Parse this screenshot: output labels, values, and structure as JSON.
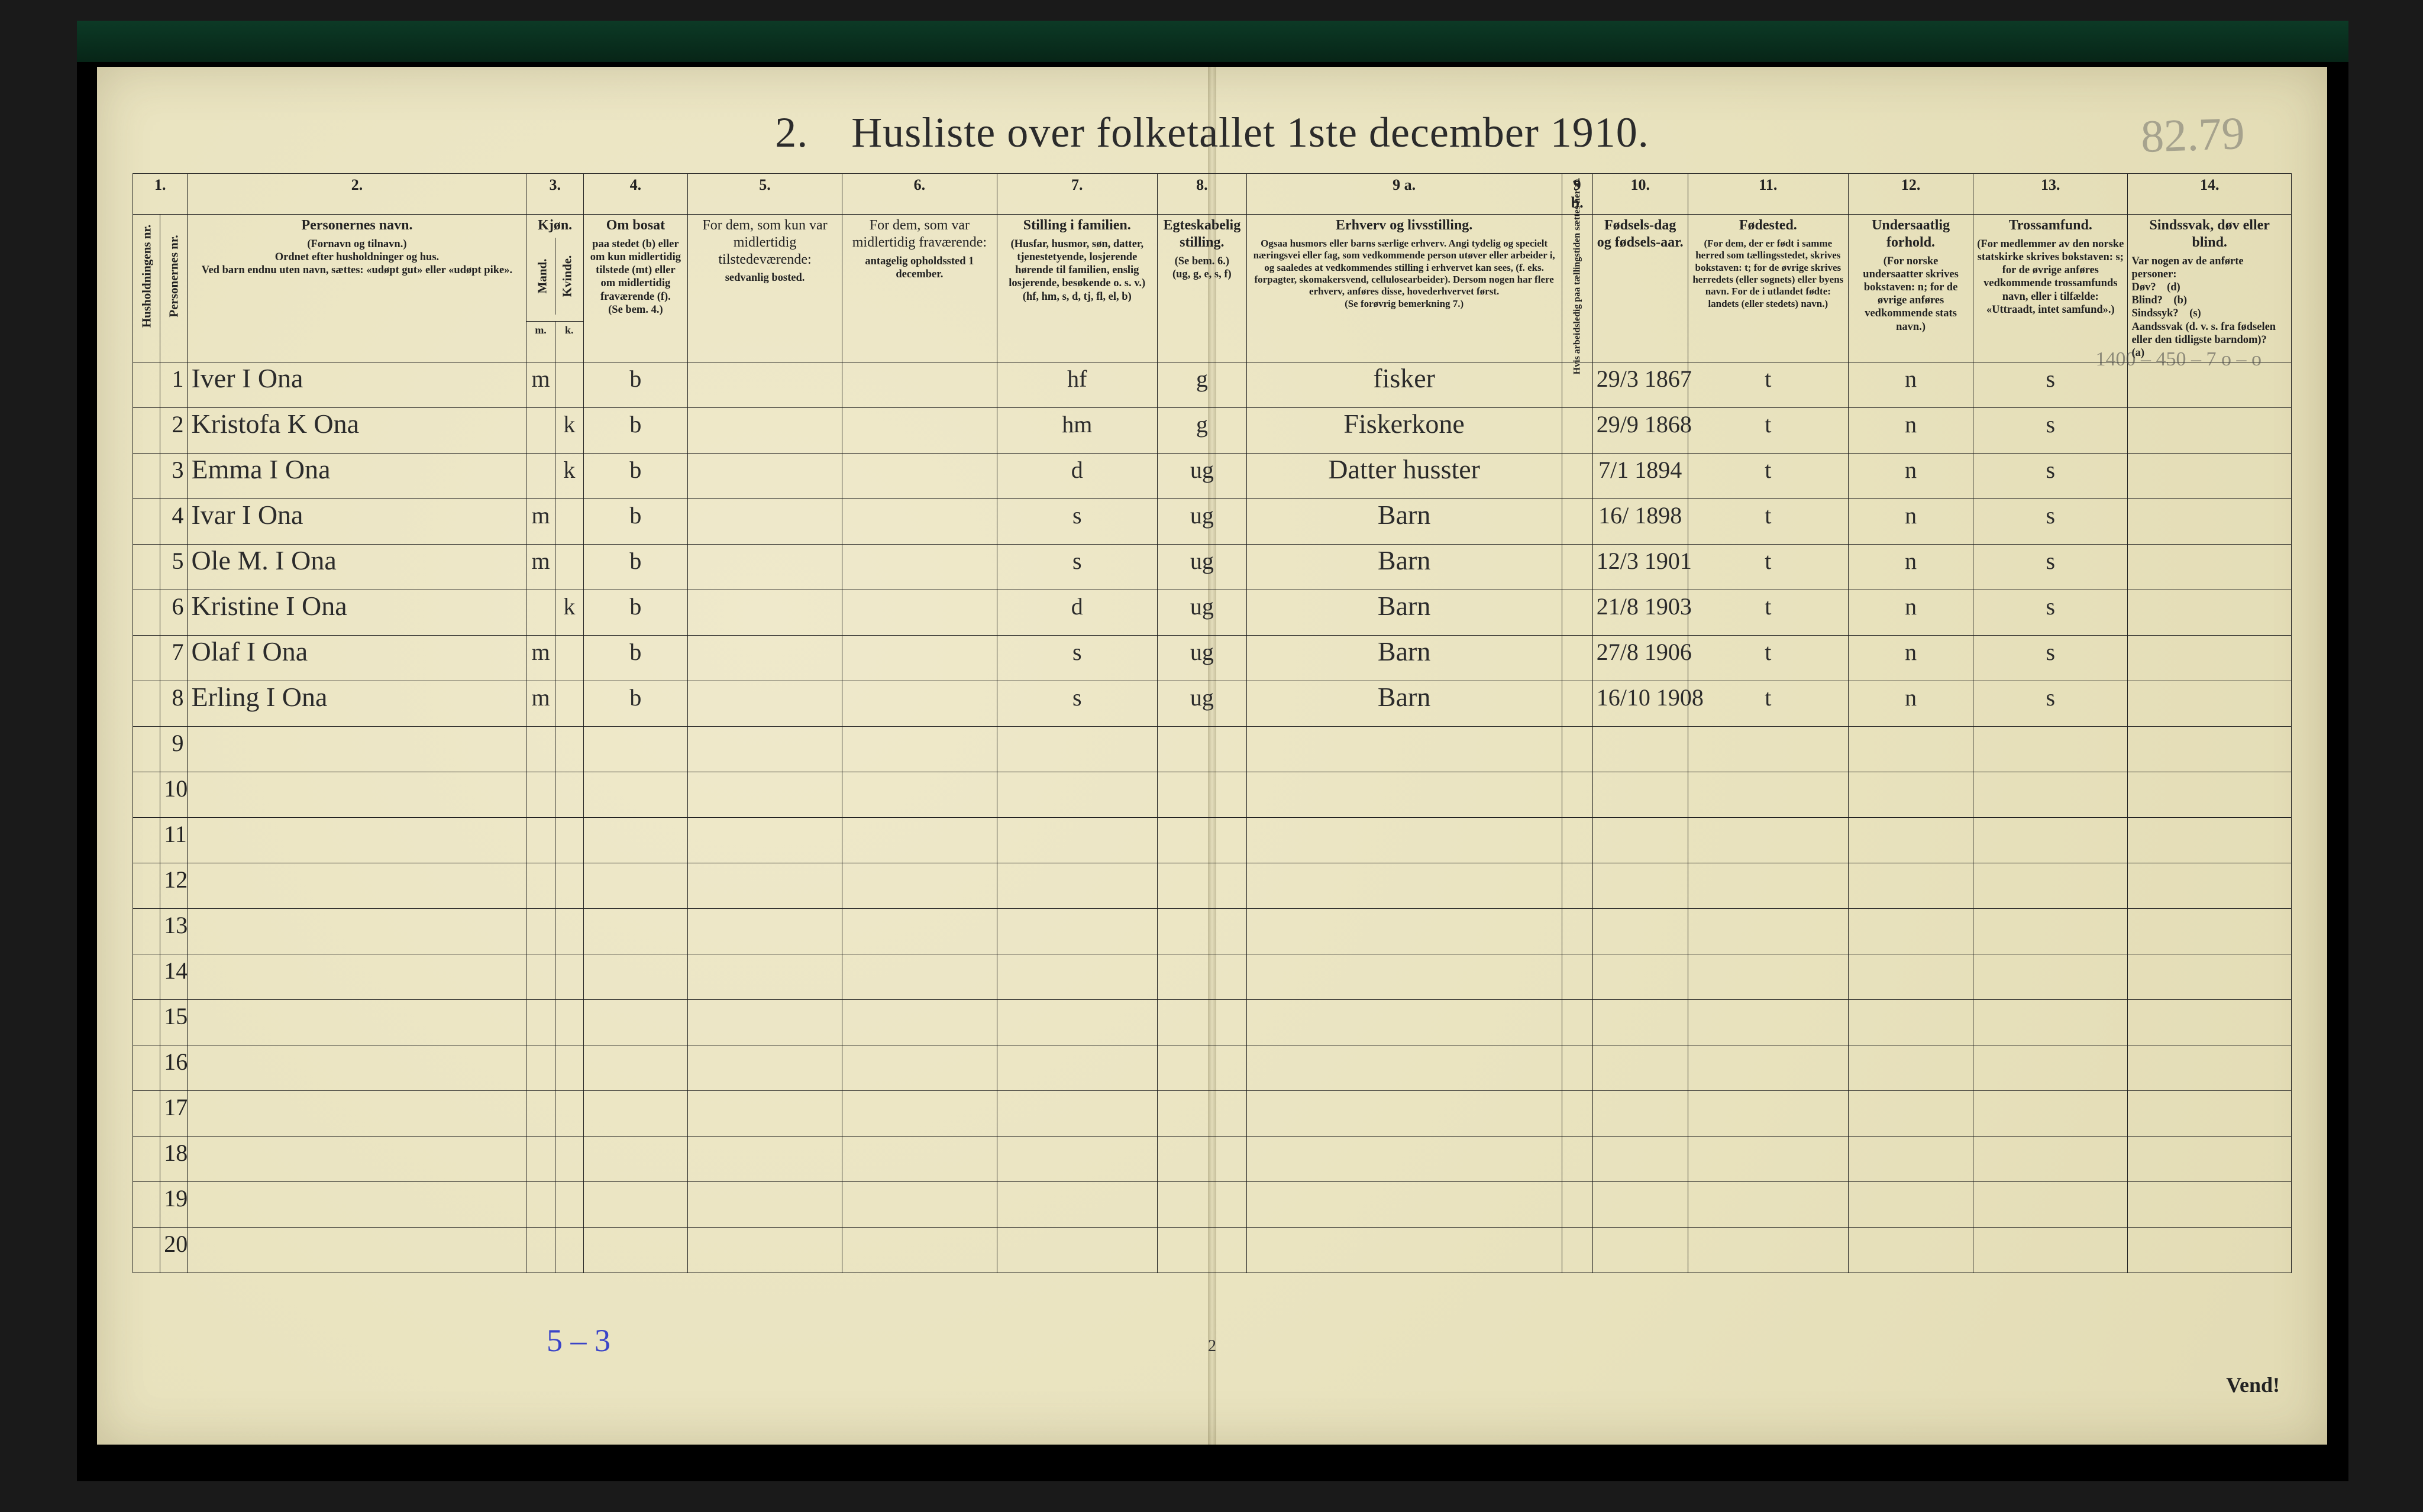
{
  "title": "2. Husliste over folketallet 1ste december 1910.",
  "pencil_topright": "82.79",
  "columns": {
    "numbers": [
      "1.",
      "2.",
      "3.",
      "4.",
      "5.",
      "6.",
      "7.",
      "8.",
      "9 a.",
      "9 b.",
      "10.",
      "11.",
      "12.",
      "13.",
      "14."
    ],
    "c1a_rot": "Husholdningens nr.",
    "c1b_rot": "Personernes nr.",
    "c2": {
      "title": "Personernes navn.",
      "body": "(Fornavn og tilnavn.)\nOrdnet efter husholdninger og hus.\nVed barn endnu uten navn, sættes: «udøpt gut» eller «udøpt pike»."
    },
    "c3": {
      "title": "Kjøn.",
      "sub_m": "m.",
      "sub_k": "k.",
      "rot_m": "Mand.",
      "rot_k": "Kvinde."
    },
    "c4": {
      "title": "Om bosat",
      "body": "paa stedet (b) eller om kun midlertidig tilstede (mt) eller om midlertidig fraværende (f).\n(Se bem. 4.)"
    },
    "c5": {
      "title": "For dem, som kun var midlertidig tilstedeværende:",
      "body": "sedvanlig bosted."
    },
    "c6": {
      "title": "For dem, som var midlertidig fraværende:",
      "body": "antagelig opholdssted 1 december."
    },
    "c7": {
      "title": "Stilling i familien.",
      "body": "(Husfar, husmor, søn, datter, tjenestetyende, losjerende hørende til familien, enslig losjerende, besøkende o. s. v.)\n(hf, hm, s, d, tj, fl, el, b)"
    },
    "c8": {
      "title": "Egteskabelig stilling.",
      "body": "(Se bem. 6.)\n(ug, g, e, s, f)"
    },
    "c9a": {
      "title": "Erhverv og livsstilling.",
      "body": "Ogsaa husmors eller barns særlige erhverv. Angi tydelig og specielt næringsvei eller fag, som vedkommende person utøver eller arbeider i, og saaledes at vedkommendes stilling i erhvervet kan sees, (f. eks. forpagter, skomakersvend, cellulosearbeider). Dersom nogen har flere erhverv, anføres disse, hovederhvervet først.\n(Se forøvrig bemerkning 7.)"
    },
    "c9b_rot": "Hvis arbeidsledig paa tællingstiden sættes her al.",
    "c10": {
      "title": "Fødsels-dag og fødsels-aar."
    },
    "c11": {
      "title": "Fødested.",
      "body": "(For dem, der er født i samme herred som tællingsstedet, skrives bokstaven: t; for de øvrige skrives herredets (eller sognets) eller byens navn. For de i utlandet fødte: landets (eller stedets) navn.)"
    },
    "c12": {
      "title": "Undersaatlig forhold.",
      "body": "(For norske undersaatter skrives bokstaven: n; for de øvrige anføres vedkommende stats navn.)"
    },
    "c13": {
      "title": "Trossamfund.",
      "body": "(For medlemmer av den norske statskirke skrives bokstaven: s; for de øvrige anføres vedkommende trossamfunds navn, eller i tilfælde: «Uttraadt, intet samfund».)"
    },
    "c14": {
      "title": "Sindssvak, døv eller blind.",
      "body": "Var nogen av de anførte personer:\nDøv? (d)\nBlind? (b)\nSindssyk? (s)\nAandssvak (d. v. s. fra fødselen eller den tidligste barndom)? (a)"
    }
  },
  "rows": [
    {
      "n": "1",
      "name": "Iver I Ona",
      "m": "m",
      "k": "",
      "res": "b",
      "c7": "hf",
      "c8": "g",
      "c9": "fisker",
      "c10": "29/3 1867",
      "c11": "t",
      "c12": "n",
      "c13": "s",
      "c14": "1400 – 450 – 7  o  –  o"
    },
    {
      "n": "2",
      "name": "Kristofa K Ona",
      "m": "",
      "k": "k",
      "res": "b",
      "c7": "hm",
      "c8": "g",
      "c9": "Fiskerkone",
      "c10": "29/9 1868",
      "c11": "t",
      "c12": "n",
      "c13": "s",
      "c14": ""
    },
    {
      "n": "3",
      "name": "Emma I Ona",
      "m": "",
      "k": "k",
      "res": "b",
      "c7": "d",
      "c8": "ug",
      "c9": "Datter husster",
      "c10": "7/1 1894",
      "c11": "t",
      "c12": "n",
      "c13": "s",
      "c14": ""
    },
    {
      "n": "4",
      "name": "Ivar I Ona",
      "m": "m",
      "k": "",
      "res": "b",
      "c7": "s",
      "c8": "ug",
      "c9": "Barn",
      "c10": "16/ 1898",
      "c11": "t",
      "c12": "n",
      "c13": "s",
      "c14": ""
    },
    {
      "n": "5",
      "name": "Ole M. I Ona",
      "m": "m",
      "k": "",
      "res": "b",
      "c7": "s",
      "c8": "ug",
      "c9": "Barn",
      "c10": "12/3 1901",
      "c11": "t",
      "c12": "n",
      "c13": "s",
      "c14": ""
    },
    {
      "n": "6",
      "name": "Kristine I Ona",
      "m": "",
      "k": "k",
      "res": "b",
      "c7": "d",
      "c8": "ug",
      "c9": "Barn",
      "c10": "21/8 1903",
      "c11": "t",
      "c12": "n",
      "c13": "s",
      "c14": ""
    },
    {
      "n": "7",
      "name": "Olaf I Ona",
      "m": "m",
      "k": "",
      "res": "b",
      "c7": "s",
      "c8": "ug",
      "c9": "Barn",
      "c10": "27/8 1906",
      "c11": "t",
      "c12": "n",
      "c13": "s",
      "c14": ""
    },
    {
      "n": "8",
      "name": "Erling I Ona",
      "m": "m",
      "k": "",
      "res": "b",
      "c7": "s",
      "c8": "ug",
      "c9": "Barn",
      "c10": "16/10 1908",
      "c11": "t",
      "c12": "n",
      "c13": "s",
      "c14": ""
    }
  ],
  "blank_row_numbers": [
    "9",
    "10",
    "11",
    "12",
    "13",
    "14",
    "15",
    "16",
    "17",
    "18",
    "19",
    "20"
  ],
  "footer": {
    "left_note": "5 – 3",
    "page_num": "2",
    "right_note": "Vend!"
  },
  "colors": {
    "paper": "#ece7c6",
    "ink": "#222222",
    "pencil": "rgba(90,90,90,0.45)",
    "blue_ink": "#3a44c8"
  }
}
